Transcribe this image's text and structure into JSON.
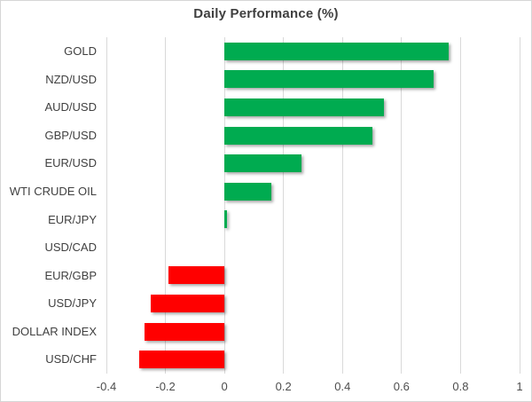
{
  "chart_data": {
    "type": "bar",
    "orientation": "horizontal",
    "title": "Daily Performance (%)",
    "categories": [
      "GOLD",
      "NZD/USD",
      "AUD/USD",
      "GBP/USD",
      "EUR/USD",
      "WTI CRUDE OIL",
      "EUR/JPY",
      "USD/CAD",
      "EUR/GBP",
      "USD/JPY",
      "DOLLAR INDEX",
      "USD/CHF"
    ],
    "values": [
      0.76,
      0.71,
      0.54,
      0.5,
      0.26,
      0.16,
      0.01,
      0.0,
      -0.19,
      -0.25,
      -0.27,
      -0.29
    ],
    "xlabel": "",
    "ylabel": "",
    "xlim": [
      -0.4,
      1.0
    ],
    "xticks": [
      -0.4,
      -0.2,
      0,
      0.2,
      0.4,
      0.6,
      0.8,
      1
    ],
    "xtick_labels": [
      "-0.4",
      "-0.2",
      "0",
      "0.2",
      "0.4",
      "0.6",
      "0.8",
      "1"
    ],
    "grid": true,
    "legend": "none",
    "positive_color": "#00AB50",
    "negative_color": "#FF0000",
    "gridline_color": "#D9D9D9",
    "title_color": "#3F3F3F",
    "label_color": "#404040",
    "tick_color": "#4D4D4D"
  }
}
